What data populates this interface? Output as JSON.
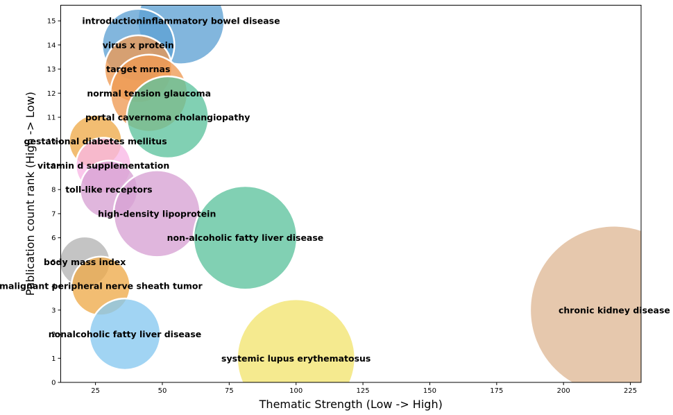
{
  "chart_data": {
    "type": "scatter",
    "title": "",
    "xlabel": "Thematic Strength (Low -> High)",
    "ylabel": "Publication count rank (High -> Low)",
    "xlim": [
      12,
      229
    ],
    "ylim": [
      0,
      15.65
    ],
    "xticks": [
      25,
      50,
      75,
      100,
      125,
      150,
      175,
      200,
      225
    ],
    "yticks": [
      0,
      1,
      2,
      3,
      4,
      5,
      6,
      7,
      8,
      9,
      10,
      11,
      12,
      13,
      14,
      15
    ],
    "grid": false,
    "legend": "none",
    "points": [
      {
        "label": "introductioninflammatory bowel disease",
        "x": 57,
        "y": 15,
        "size": 18,
        "color": "#5fa2d3"
      },
      {
        "label": "virus x protein",
        "x": 41,
        "y": 14,
        "size": 15,
        "color": "#5fa2d3"
      },
      {
        "label": "target mrnas",
        "x": 41,
        "y": 13,
        "size": 14,
        "color": "#ee9a53"
      },
      {
        "label": "normal tension glaucoma",
        "x": 45,
        "y": 12,
        "size": 16,
        "color": "#ee9a53"
      },
      {
        "label": "portal cavernoma cholangiopathy",
        "x": 52,
        "y": 11,
        "size": 17,
        "color": "#5dc39e"
      },
      {
        "label": "gestational diabetes mellitus",
        "x": 25,
        "y": 10,
        "size": 11,
        "color": "#eeaa4a"
      },
      {
        "label": "vitamin d supplementation",
        "x": 28,
        "y": 9,
        "size": 11.5,
        "color": "#f9b7e6"
      },
      {
        "label": "toll-like receptors",
        "x": 30,
        "y": 8,
        "size": 12,
        "color": "#d7a2d4"
      },
      {
        "label": "high-density lipoprotein",
        "x": 48,
        "y": 7,
        "size": 18,
        "color": "#d7a2d4"
      },
      {
        "label": "non-alcoholic fatty liver disease",
        "x": 81,
        "y": 6,
        "size": 21.5,
        "color": "#5dc39e"
      },
      {
        "label": "body mass index",
        "x": 21,
        "y": 5,
        "size": 10.5,
        "color": "#b3b3b3"
      },
      {
        "label": "malignant peripheral nerve sheath tumor",
        "x": 27,
        "y": 4,
        "size": 12.2,
        "color": "#eeaa4a"
      },
      {
        "label": "nonalcoholic fatty liver disease",
        "x": 36,
        "y": 2,
        "size": 14.8,
        "color": "#87c8ef"
      },
      {
        "label": "chronic kidney disease",
        "x": 219,
        "y": 3,
        "size": 35,
        "color": "#dfb896"
      },
      {
        "label": "systemic lupus erythematosus",
        "x": 100,
        "y": 1,
        "size": 24.5,
        "color": "#f2e46f"
      }
    ]
  }
}
